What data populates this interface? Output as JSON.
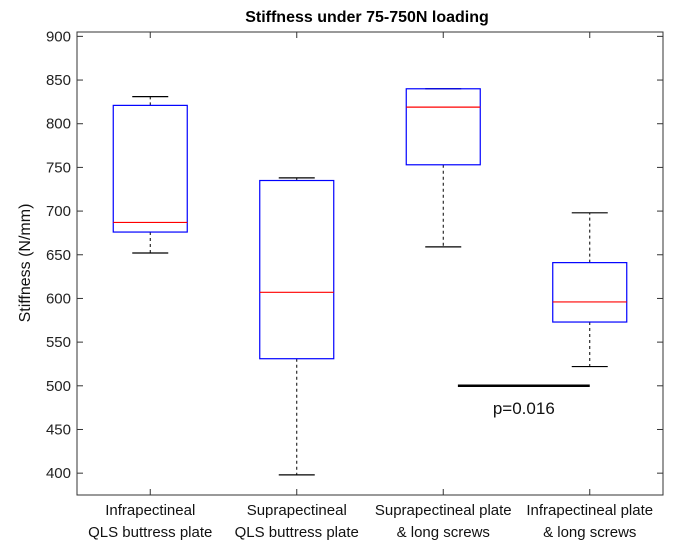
{
  "chart_data": {
    "type": "box",
    "title": "Stiffness under 75-750N loading",
    "xlabel": "",
    "ylabel": "Stiffness (N/mm)",
    "ylim": [
      375,
      905
    ],
    "yticks": [
      400,
      450,
      500,
      550,
      600,
      650,
      700,
      750,
      800,
      850,
      900
    ],
    "grid": false,
    "categories": [
      [
        "Infrapectineal",
        "QLS buttress plate"
      ],
      [
        "Suprapectineal",
        "QLS buttress plate"
      ],
      [
        "Suprapectineal plate",
        "& long screws"
      ],
      [
        "Infrapectineal plate",
        "& long screws"
      ]
    ],
    "boxes": [
      {
        "whisker_low": 652,
        "q1": 676,
        "median": 687,
        "q3": 821,
        "whisker_high": 831
      },
      {
        "whisker_low": 398,
        "q1": 531,
        "median": 607,
        "q3": 735,
        "whisker_high": 738
      },
      {
        "whisker_low": 659,
        "q1": 753,
        "median": 819,
        "q3": 840,
        "whisker_high": 840
      },
      {
        "whisker_low": 522,
        "q1": 573,
        "median": 596,
        "q3": 641,
        "whisker_high": 698
      }
    ],
    "annotations": [
      {
        "text": "p=0.016",
        "y": 500,
        "x_from": 3.1,
        "x_to": 4.0
      }
    ],
    "colors": {
      "box": "#0000ff",
      "median": "#ff0000",
      "whisker": "#000000"
    }
  }
}
